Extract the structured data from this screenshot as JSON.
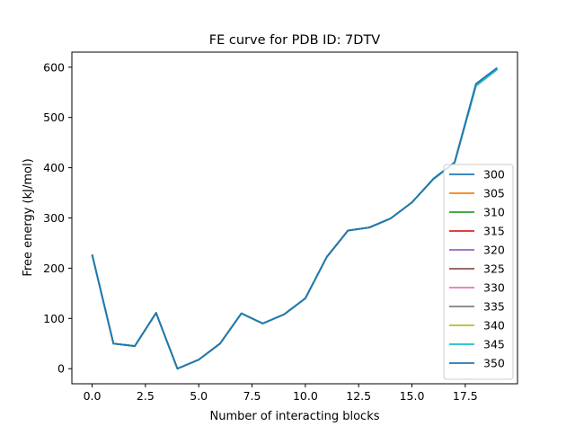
{
  "chart_data": {
    "type": "line",
    "title": "FE curve for PDB ID: 7DTV",
    "xlabel": "Number of interacting blocks",
    "ylabel": "Free energy (kJ/mol)",
    "xlim": [
      -0.95,
      19.95
    ],
    "ylim": [
      -30,
      630
    ],
    "xticks": [
      0.0,
      2.5,
      5.0,
      7.5,
      10.0,
      12.5,
      15.0,
      17.5
    ],
    "xtick_labels": [
      "0.0",
      "2.5",
      "5.0",
      "7.5",
      "10.0",
      "12.5",
      "15.0",
      "17.5"
    ],
    "yticks": [
      0,
      100,
      200,
      300,
      400,
      500,
      600
    ],
    "ytick_labels": [
      "0",
      "100",
      "200",
      "300",
      "400",
      "500",
      "600"
    ],
    "grid": false,
    "legend_position": "lower-right",
    "x": [
      0,
      1,
      2,
      3,
      4,
      5,
      6,
      7,
      8,
      9,
      10,
      11,
      12,
      13,
      14,
      15,
      16,
      17,
      18,
      19
    ],
    "series": [
      {
        "name": "300",
        "color": "#1f77b4",
        "values": [
          227,
          50,
          45,
          111,
          0,
          18,
          50,
          110,
          90,
          108,
          140,
          222,
          275,
          281,
          299,
          331,
          377,
          410,
          563,
          596
        ]
      },
      {
        "name": "305",
        "color": "#ff7f0e",
        "values": [
          227,
          50,
          45,
          111,
          0,
          18,
          50,
          110,
          90,
          108,
          140,
          222,
          275,
          281,
          299,
          331,
          377,
          410,
          563,
          596
        ]
      },
      {
        "name": "310",
        "color": "#2ca02c",
        "values": [
          227,
          50,
          45,
          111,
          0,
          18,
          50,
          110,
          90,
          108,
          140,
          222,
          275,
          281,
          299,
          331,
          377,
          410,
          563,
          596
        ]
      },
      {
        "name": "315",
        "color": "#d62728",
        "values": [
          227,
          50,
          45,
          111,
          0,
          18,
          50,
          110,
          90,
          108,
          140,
          222,
          275,
          281,
          299,
          331,
          377,
          410,
          563,
          596
        ]
      },
      {
        "name": "320",
        "color": "#9467bd",
        "values": [
          227,
          50,
          45,
          111,
          0,
          18,
          50,
          110,
          90,
          108,
          140,
          222,
          275,
          281,
          299,
          331,
          377,
          410,
          563,
          596
        ]
      },
      {
        "name": "325",
        "color": "#8c564b",
        "values": [
          227,
          50,
          45,
          111,
          0,
          18,
          50,
          110,
          90,
          108,
          140,
          222,
          275,
          281,
          299,
          331,
          377,
          410,
          563,
          596
        ]
      },
      {
        "name": "330",
        "color": "#e377c2",
        "values": [
          227,
          50,
          45,
          111,
          0,
          18,
          50,
          110,
          90,
          108,
          140,
          222,
          275,
          281,
          299,
          331,
          377,
          410,
          563,
          596
        ]
      },
      {
        "name": "335",
        "color": "#7f7f7f",
        "values": [
          227,
          50,
          45,
          111,
          0,
          18,
          50,
          110,
          90,
          108,
          140,
          222,
          275,
          281,
          299,
          331,
          377,
          410,
          563,
          596
        ]
      },
      {
        "name": "340",
        "color": "#bcbd22",
        "values": [
          227,
          50,
          45,
          111,
          0,
          18,
          50,
          110,
          90,
          108,
          140,
          222,
          275,
          281,
          299,
          331,
          377,
          410,
          563,
          596
        ]
      },
      {
        "name": "345",
        "color": "#17becf",
        "values": [
          227,
          50,
          45,
          111,
          0,
          18,
          50,
          110,
          90,
          108,
          140,
          222,
          275,
          281,
          299,
          331,
          377,
          410,
          563,
          596
        ]
      },
      {
        "name": "350",
        "color": "#1f77b4",
        "values": [
          227,
          50,
          45,
          111,
          0,
          18,
          50,
          110,
          90,
          108,
          140,
          222,
          275,
          281,
          299,
          331,
          378,
          411,
          567,
          599
        ]
      }
    ]
  }
}
